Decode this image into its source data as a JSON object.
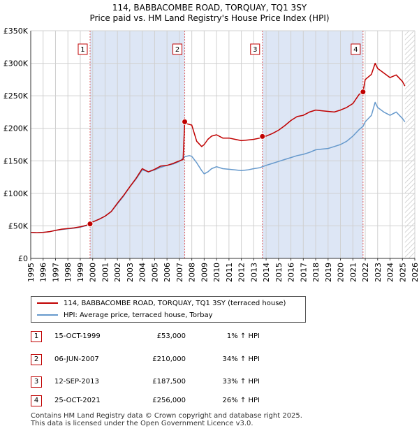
{
  "chart_data": {
    "type": "line",
    "title": "114, BABBACOMBE ROAD, TORQUAY, TQ1 3SY",
    "subtitle": "Price paid vs. HM Land Registry's House Price Index (HPI)",
    "xlabel": "",
    "ylabel": "",
    "xlim": [
      1995,
      2026
    ],
    "ylim": [
      0,
      350000
    ],
    "x_ticks": [
      1995,
      1996,
      1997,
      1998,
      1999,
      2000,
      2001,
      2002,
      2003,
      2004,
      2005,
      2006,
      2007,
      2008,
      2009,
      2010,
      2011,
      2012,
      2013,
      2014,
      2015,
      2016,
      2017,
      2018,
      2019,
      2020,
      2021,
      2022,
      2023,
      2024,
      2025,
      2026
    ],
    "y_ticks": [
      0,
      50000,
      100000,
      150000,
      200000,
      250000,
      300000,
      350000
    ],
    "y_tick_labels": [
      "£0",
      "£50K",
      "£100K",
      "£150K",
      "£200K",
      "£250K",
      "£300K",
      "£350K"
    ],
    "grid": true,
    "series": [
      {
        "name": "114, BABBACOMBE ROAD, TORQUAY, TQ1 3SY (terraced house)",
        "color": "#c00000",
        "x": [
          1995.0,
          1995.5,
          1996.0,
          1996.5,
          1997.0,
          1997.5,
          1998.0,
          1998.5,
          1999.0,
          1999.5,
          1999.79,
          2000.0,
          2000.5,
          2001.0,
          2001.5,
          2002.0,
          2002.5,
          2003.0,
          2003.5,
          2004.0,
          2004.5,
          2005.0,
          2005.5,
          2006.0,
          2006.5,
          2007.0,
          2007.3,
          2007.43,
          2007.6,
          2008.0,
          2008.4,
          2008.8,
          2009.0,
          2009.3,
          2009.6,
          2010.0,
          2010.5,
          2011.0,
          2011.5,
          2012.0,
          2012.5,
          2013.0,
          2013.5,
          2013.7,
          2014.0,
          2014.5,
          2015.0,
          2015.5,
          2016.0,
          2016.5,
          2017.0,
          2017.5,
          2018.0,
          2018.5,
          2019.0,
          2019.5,
          2020.0,
          2020.5,
          2021.0,
          2021.5,
          2021.82,
          2022.0,
          2022.5,
          2022.8,
          2023.0,
          2023.5,
          2024.0,
          2024.5,
          2025.0,
          2025.2
        ],
        "values": [
          40000,
          39500,
          40000,
          41000,
          43000,
          45000,
          46000,
          47000,
          48500,
          51000,
          53000,
          56000,
          60000,
          65000,
          72000,
          85000,
          97000,
          110000,
          123000,
          138000,
          133000,
          137000,
          142000,
          143000,
          146000,
          150000,
          152000,
          210000,
          207000,
          205000,
          180000,
          172000,
          175000,
          183000,
          188000,
          190000,
          185000,
          185000,
          183000,
          181000,
          182000,
          183000,
          185000,
          187500,
          188000,
          192000,
          197000,
          204000,
          212000,
          218000,
          220000,
          225000,
          228000,
          227000,
          226000,
          225000,
          228000,
          232000,
          238000,
          252000,
          256000,
          275000,
          283000,
          300000,
          292000,
          285000,
          278000,
          282000,
          272000,
          265000
        ]
      },
      {
        "name": "HPI: Average price, terraced house, Torbay",
        "color": "#6699cc",
        "x": [
          1995.0,
          1995.5,
          1996.0,
          1996.5,
          1997.0,
          1997.5,
          1998.0,
          1998.5,
          1999.0,
          1999.5,
          1999.79,
          2000.0,
          2000.5,
          2001.0,
          2001.5,
          2002.0,
          2002.5,
          2003.0,
          2003.5,
          2004.0,
          2004.5,
          2005.0,
          2005.5,
          2006.0,
          2006.5,
          2007.0,
          2007.43,
          2007.8,
          2008.0,
          2008.4,
          2008.8,
          2009.0,
          2009.3,
          2009.6,
          2010.0,
          2010.5,
          2011.0,
          2011.5,
          2012.0,
          2012.5,
          2013.0,
          2013.5,
          2013.7,
          2014.0,
          2014.5,
          2015.0,
          2015.5,
          2016.0,
          2016.5,
          2017.0,
          2017.5,
          2018.0,
          2018.5,
          2019.0,
          2019.5,
          2020.0,
          2020.5,
          2021.0,
          2021.5,
          2021.82,
          2022.0,
          2022.5,
          2022.8,
          2023.0,
          2023.5,
          2024.0,
          2024.5,
          2025.0,
          2025.2
        ],
        "values": [
          40000,
          39500,
          40000,
          41000,
          43000,
          44500,
          45500,
          46500,
          48000,
          50500,
          52300,
          56000,
          60000,
          65000,
          72000,
          84000,
          96000,
          110000,
          122000,
          136000,
          133000,
          136000,
          140000,
          143000,
          145000,
          149000,
          156300,
          158000,
          157000,
          147000,
          135000,
          130000,
          133000,
          138000,
          141000,
          138000,
          137000,
          136000,
          135000,
          136000,
          138000,
          139500,
          141000,
          143000,
          146000,
          149000,
          152000,
          155000,
          158000,
          160000,
          163000,
          167000,
          168000,
          169000,
          172000,
          175000,
          180000,
          188000,
          198000,
          203000,
          210000,
          220000,
          240000,
          232000,
          225000,
          220000,
          225000,
          215000,
          210000
        ]
      }
    ],
    "sales": [
      {
        "label": "1",
        "x": 1999.79,
        "value": 53000
      },
      {
        "label": "2",
        "x": 2007.43,
        "value": 210000
      },
      {
        "label": "3",
        "x": 2013.7,
        "value": 187500
      },
      {
        "label": "4",
        "x": 2021.82,
        "value": 256000
      }
    ],
    "shaded_periods": [
      [
        1999.79,
        2007.43
      ],
      [
        2013.7,
        2021.82
      ]
    ],
    "hatched_after": 2025.2,
    "legend_position": "bottom"
  },
  "colors": {
    "price_line": "#c00000",
    "hpi_line": "#6699cc",
    "shade": "#dde6f5",
    "grid": "#d0d0d0"
  },
  "title": "114, BABBACOMBE ROAD, TORQUAY, TQ1 3SY",
  "subtitle": "Price paid vs. HM Land Registry's House Price Index (HPI)",
  "legend": [
    {
      "label": "114, BABBACOMBE ROAD, TORQUAY, TQ1 3SY (terraced house)"
    },
    {
      "label": "HPI: Average price, terraced house, Torbay"
    }
  ],
  "sales_table": [
    {
      "num": "1",
      "date": "15-OCT-1999",
      "price": "£53,000",
      "hpi": "1% ↑ HPI"
    },
    {
      "num": "2",
      "date": "06-JUN-2007",
      "price": "£210,000",
      "hpi": "34% ↑ HPI"
    },
    {
      "num": "3",
      "date": "12-SEP-2013",
      "price": "£187,500",
      "hpi": "33% ↑ HPI"
    },
    {
      "num": "4",
      "date": "25-OCT-2021",
      "price": "£256,000",
      "hpi": "26% ↑ HPI"
    }
  ],
  "footer": [
    "Contains HM Land Registry data © Crown copyright and database right 2025.",
    "This data is licensed under the Open Government Licence v3.0."
  ]
}
